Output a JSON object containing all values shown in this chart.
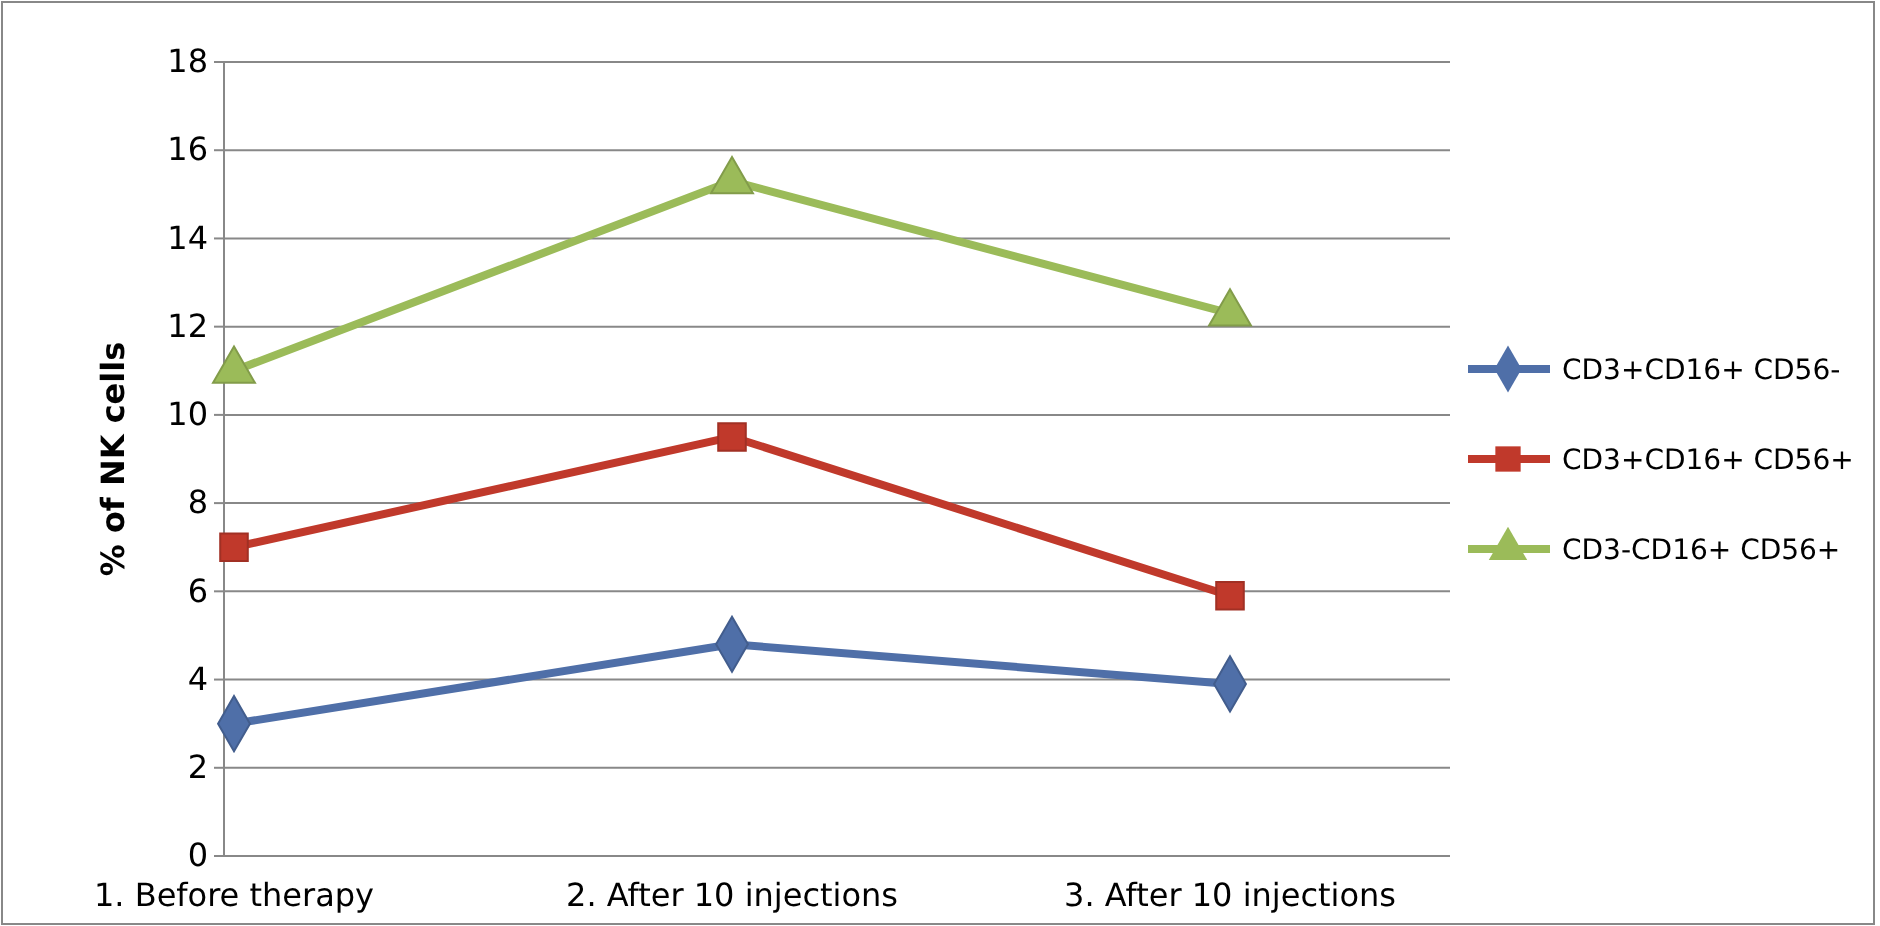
{
  "chart_data": {
    "type": "line",
    "ylabel": "% of NK cells",
    "categories": [
      "1. Before therapy",
      "2. After 10 injections",
      "3. After 10 injections"
    ],
    "series": [
      {
        "name": "CD3+CD16+ CD56-",
        "color": "#4f6fa8",
        "marker": "diamond",
        "values": [
          3,
          4.8,
          3.9
        ]
      },
      {
        "name": "CD3+CD16+ CD56+",
        "color": "#c0392b",
        "marker": "square",
        "values": [
          7,
          9.5,
          5.9
        ]
      },
      {
        "name": "CD3-CD16+ CD56+",
        "color": "#9bbb59",
        "marker": "triangle",
        "values": [
          11,
          15.3,
          12.3
        ]
      }
    ],
    "ylim": [
      0,
      18
    ],
    "yticks": [
      0,
      2,
      4,
      6,
      8,
      10,
      12,
      14,
      16,
      18
    ],
    "grid": "y",
    "legend": "right",
    "line_style": "solid"
  }
}
